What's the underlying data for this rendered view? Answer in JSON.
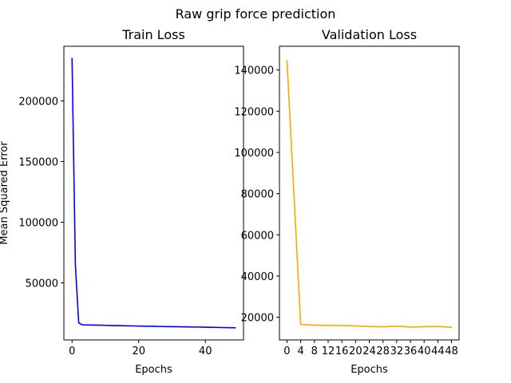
{
  "suptitle": "Raw grip force prediction",
  "chart_data": [
    {
      "type": "line",
      "title": "Train Loss",
      "xlabel": "Epochs",
      "ylabel": "Mean Squared Error",
      "color": "#0000ff",
      "xlim": [
        -2.45,
        51.45
      ],
      "ylim": [
        3000,
        245000
      ],
      "xticks": [
        0,
        20,
        40
      ],
      "yticks": [
        50000,
        100000,
        150000,
        200000
      ],
      "x": [
        0,
        1,
        2,
        3,
        4,
        5,
        6,
        7,
        8,
        9,
        10,
        11,
        12,
        13,
        14,
        15,
        16,
        17,
        18,
        19,
        20,
        21,
        22,
        23,
        24,
        25,
        26,
        27,
        28,
        29,
        30,
        31,
        32,
        33,
        34,
        35,
        36,
        37,
        38,
        39,
        40,
        41,
        42,
        43,
        44,
        45,
        46,
        47,
        48,
        49
      ],
      "y": [
        235000,
        65000,
        17000,
        15500,
        15300,
        15300,
        15200,
        15200,
        15100,
        15100,
        15000,
        14900,
        14900,
        14800,
        14800,
        14700,
        14600,
        14600,
        14500,
        14500,
        14400,
        14400,
        14300,
        14300,
        14200,
        14200,
        14100,
        14100,
        14000,
        14000,
        13900,
        13900,
        13800,
        13800,
        13700,
        13700,
        13600,
        13600,
        13600,
        13500,
        13500,
        13400,
        13400,
        13300,
        13300,
        13200,
        13200,
        13100,
        13100,
        13000
      ]
    },
    {
      "type": "line",
      "title": "Validation Loss",
      "xlabel": "Epochs",
      "ylabel": "",
      "color": "#ffa500",
      "xlim": [
        -2.2,
        50.2
      ],
      "ylim": [
        9000,
        151500
      ],
      "xticks": [
        0,
        4,
        8,
        12,
        16,
        20,
        24,
        28,
        32,
        36,
        40,
        44,
        48
      ],
      "yticks": [
        20000,
        40000,
        60000,
        80000,
        100000,
        120000,
        140000
      ],
      "x": [
        0,
        4,
        8,
        12,
        16,
        20,
        24,
        28,
        32,
        36,
        40,
        44,
        48
      ],
      "y": [
        144500,
        16500,
        16200,
        16000,
        16000,
        15800,
        15500,
        15300,
        15700,
        15200,
        15400,
        15500,
        15100
      ]
    }
  ]
}
